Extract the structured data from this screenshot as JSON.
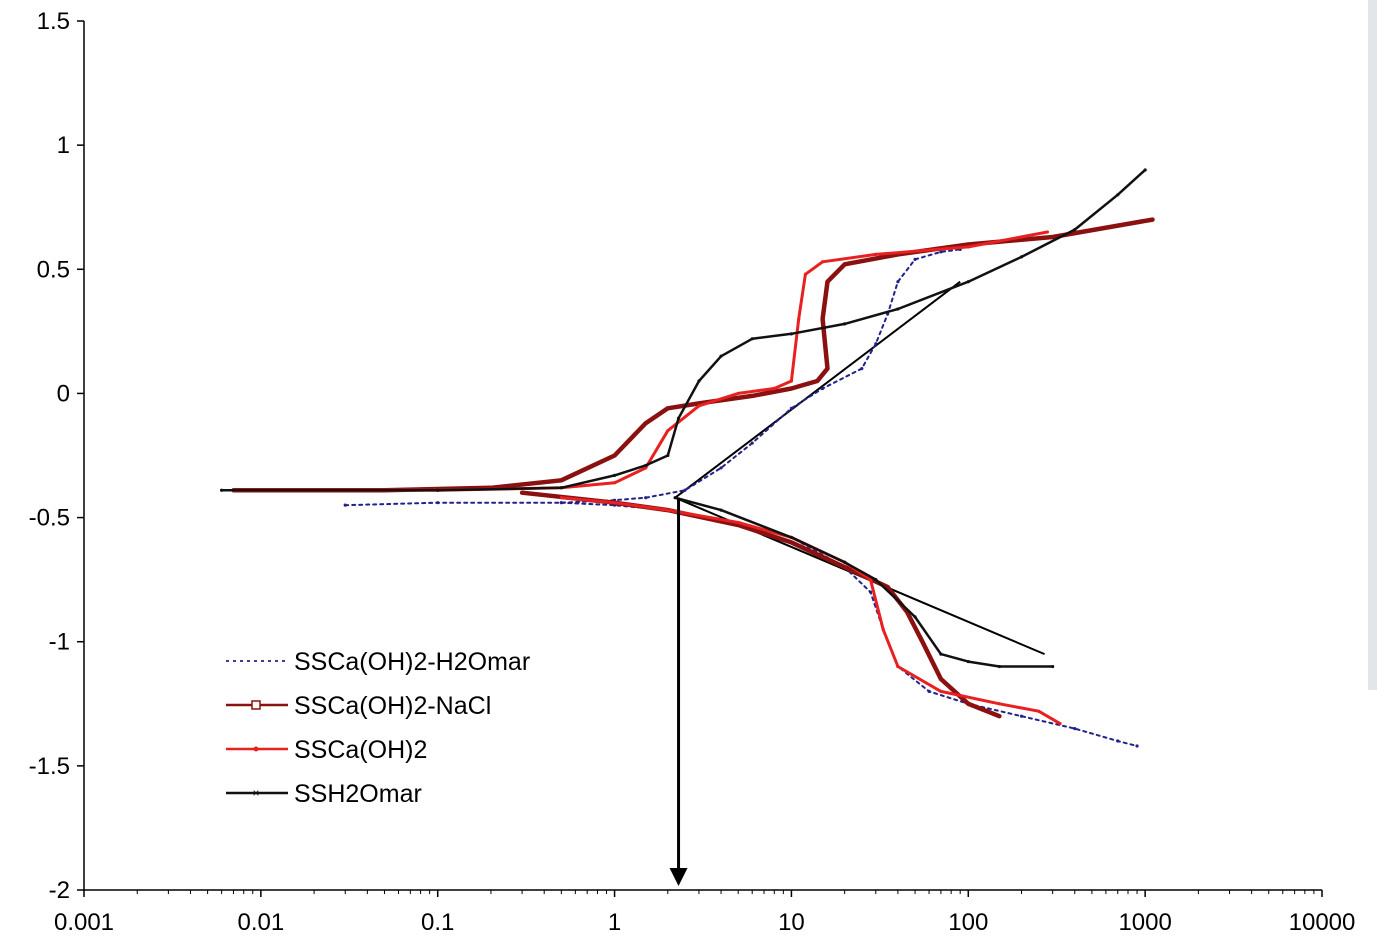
{
  "chart_data": {
    "type": "line",
    "xscale": "log",
    "xlim": [
      0.001,
      10000
    ],
    "ylim": [
      -2,
      1.5
    ],
    "xticks": [
      "0.001",
      "0.01",
      "0.1",
      "1",
      "10",
      "100",
      "1000",
      "10000"
    ],
    "yticks": [
      "1.5",
      "1",
      "0.5",
      "0",
      "-0.5",
      "-1",
      "-1.5",
      "-2"
    ],
    "grid": false,
    "legend": "lower-left",
    "series": [
      {
        "name": "SSCa(OH)2-H2Omar",
        "color": "#22228a",
        "style": "dotted",
        "anodic": [
          [
            0.03,
            -0.45
          ],
          [
            0.1,
            -0.44
          ],
          [
            0.5,
            -0.44
          ],
          [
            1,
            -0.43
          ],
          [
            1.5,
            -0.42
          ],
          [
            2.5,
            -0.39
          ],
          [
            4,
            -0.3
          ],
          [
            6,
            -0.2
          ],
          [
            10,
            -0.06
          ],
          [
            15,
            0.02
          ],
          [
            25,
            0.1
          ],
          [
            30,
            0.2
          ],
          [
            35,
            0.32
          ],
          [
            40,
            0.45
          ],
          [
            50,
            0.54
          ],
          [
            70,
            0.57
          ],
          [
            90,
            0.58
          ]
        ],
        "cathodic": [
          [
            0.5,
            -0.44
          ],
          [
            1,
            -0.45
          ],
          [
            2,
            -0.47
          ],
          [
            5,
            -0.52
          ],
          [
            10,
            -0.58
          ],
          [
            20,
            -0.7
          ],
          [
            28,
            -0.8
          ],
          [
            33,
            -0.95
          ],
          [
            40,
            -1.1
          ],
          [
            60,
            -1.2
          ],
          [
            100,
            -1.25
          ],
          [
            200,
            -1.3
          ],
          [
            400,
            -1.35
          ],
          [
            700,
            -1.4
          ],
          [
            900,
            -1.42
          ]
        ]
      },
      {
        "name": "SSCa(OH)2-NaCl",
        "color": "#8b1010",
        "style": "solid-square",
        "anodic": [
          [
            0.007,
            -0.39
          ],
          [
            0.05,
            -0.39
          ],
          [
            0.2,
            -0.38
          ],
          [
            0.5,
            -0.35
          ],
          [
            1,
            -0.25
          ],
          [
            1.5,
            -0.12
          ],
          [
            2,
            -0.06
          ],
          [
            3,
            -0.04
          ],
          [
            6,
            -0.01
          ],
          [
            10,
            0.02
          ],
          [
            14,
            0.05
          ],
          [
            16,
            0.1
          ],
          [
            15,
            0.3
          ],
          [
            16,
            0.45
          ],
          [
            20,
            0.52
          ],
          [
            40,
            0.56
          ],
          [
            100,
            0.6
          ],
          [
            300,
            0.63
          ],
          [
            1100,
            0.7
          ]
        ],
        "cathodic": [
          [
            0.3,
            -0.4
          ],
          [
            1,
            -0.44
          ],
          [
            2,
            -0.47
          ],
          [
            5,
            -0.53
          ],
          [
            10,
            -0.6
          ],
          [
            20,
            -0.7
          ],
          [
            35,
            -0.78
          ],
          [
            45,
            -0.88
          ],
          [
            55,
            -1.0
          ],
          [
            70,
            -1.15
          ],
          [
            100,
            -1.25
          ],
          [
            150,
            -1.3
          ]
        ]
      },
      {
        "name": "SSCa(OH)2",
        "color": "#e82020",
        "style": "solid-dot",
        "anodic": [
          [
            0.007,
            -0.39
          ],
          [
            0.1,
            -0.39
          ],
          [
            0.5,
            -0.38
          ],
          [
            1,
            -0.36
          ],
          [
            1.5,
            -0.3
          ],
          [
            2,
            -0.15
          ],
          [
            3,
            -0.05
          ],
          [
            5,
            0.0
          ],
          [
            8,
            0.02
          ],
          [
            10,
            0.05
          ],
          [
            11,
            0.3
          ],
          [
            12,
            0.48
          ],
          [
            15,
            0.53
          ],
          [
            30,
            0.56
          ],
          [
            100,
            0.59
          ],
          [
            280,
            0.65
          ]
        ],
        "cathodic": [
          [
            0.5,
            -0.42
          ],
          [
            1,
            -0.44
          ],
          [
            2,
            -0.47
          ],
          [
            5,
            -0.52
          ],
          [
            10,
            -0.58
          ],
          [
            20,
            -0.68
          ],
          [
            28,
            -0.75
          ],
          [
            33,
            -0.95
          ],
          [
            40,
            -1.1
          ],
          [
            70,
            -1.2
          ],
          [
            150,
            -1.25
          ],
          [
            250,
            -1.28
          ],
          [
            330,
            -1.33
          ]
        ]
      },
      {
        "name": "SSH2Omar",
        "color": "#111111",
        "style": "solid-cross",
        "anodic": [
          [
            0.006,
            -0.39
          ],
          [
            0.1,
            -0.39
          ],
          [
            0.5,
            -0.38
          ],
          [
            1,
            -0.33
          ],
          [
            1.5,
            -0.29
          ],
          [
            2,
            -0.25
          ],
          [
            2.3,
            -0.1
          ],
          [
            3,
            0.05
          ],
          [
            4,
            0.15
          ],
          [
            6,
            0.22
          ],
          [
            10,
            0.24
          ],
          [
            20,
            0.28
          ],
          [
            40,
            0.34
          ],
          [
            100,
            0.45
          ],
          [
            200,
            0.55
          ],
          [
            400,
            0.66
          ],
          [
            700,
            0.8
          ],
          [
            1000,
            0.9
          ]
        ],
        "cathodic": [
          [
            2.2,
            -0.42
          ],
          [
            4,
            -0.47
          ],
          [
            10,
            -0.58
          ],
          [
            20,
            -0.68
          ],
          [
            30,
            -0.75
          ],
          [
            50,
            -0.9
          ],
          [
            70,
            -1.05
          ],
          [
            100,
            -1.08
          ],
          [
            150,
            -1.1
          ],
          [
            300,
            -1.1
          ]
        ]
      }
    ],
    "tafel_lines": [
      [
        [
          2.2,
          -0.42
        ],
        [
          90,
          0.45
        ]
      ],
      [
        [
          2.2,
          -0.42
        ],
        [
          270,
          -1.05
        ]
      ]
    ],
    "arrow": {
      "x": 2.3,
      "from_y": -0.42,
      "to_y": -2
    }
  }
}
